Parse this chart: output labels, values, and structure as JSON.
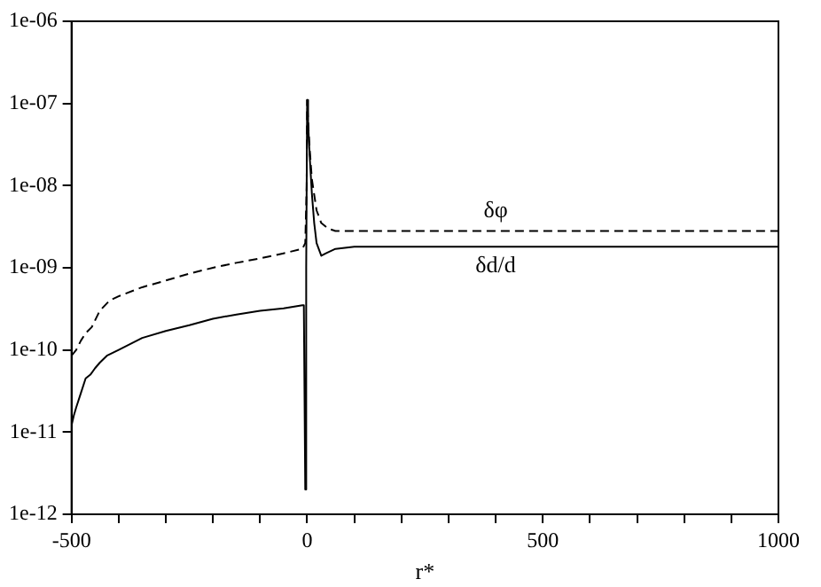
{
  "chart_data": {
    "type": "line",
    "xlabel": "r*",
    "log": "y",
    "grid": false,
    "legend": false,
    "marker": "none",
    "xlim": [
      -500,
      1000
    ],
    "xticks": [
      -500,
      {
        "value": -400,
        "label": null
      },
      {
        "value": -300,
        "label": null
      },
      {
        "value": -200,
        "label": null
      },
      {
        "value": -100,
        "label": null
      },
      0,
      {
        "value": 100,
        "label": null
      },
      {
        "value": 200,
        "label": null
      },
      {
        "value": 300,
        "label": null
      },
      {
        "value": 400,
        "label": null
      },
      500,
      {
        "value": 600,
        "label": null
      },
      {
        "value": 700,
        "label": null
      },
      {
        "value": 800,
        "label": null
      },
      {
        "value": 900,
        "label": null
      },
      1000
    ],
    "ylim": [
      1e-12,
      1e-06
    ],
    "yticks": [
      {
        "value": 1e-12,
        "label": "1e-12"
      },
      {
        "value": 1e-11,
        "label": "1e-11"
      },
      {
        "value": 1e-10,
        "label": "1e-10"
      },
      {
        "value": 1e-09,
        "label": "1e-09"
      },
      {
        "value": 1e-08,
        "label": "1e-08"
      },
      {
        "value": 1e-07,
        "label": "1e-07"
      },
      {
        "value": 1e-06,
        "label": "1e-06"
      }
    ],
    "series": [
      {
        "name": "δφ",
        "color": "#000000",
        "line_style": "dashed",
        "x": [
          -500,
          -490,
          -480,
          -470,
          -457,
          -440,
          -419,
          -400,
          -350,
          -300,
          -250,
          -200,
          -150,
          -100,
          -50,
          -10,
          -4,
          -1,
          0,
          2,
          5,
          10,
          20,
          30,
          45,
          60,
          100,
          300,
          600,
          1000
        ],
        "values": [
          8.5e-11,
          1e-10,
          1.3e-10,
          1.6e-10,
          1.9e-10,
          3e-10,
          4e-10,
          4.5e-10,
          5.8e-10,
          7e-10,
          8.5e-10,
          1e-09,
          1.15e-09,
          1.3e-09,
          1.5e-09,
          1.7e-09,
          2e-09,
          1e-08,
          1.1e-07,
          6e-08,
          3e-08,
          1.2e-08,
          5e-09,
          3.5e-09,
          3e-09,
          2.8e-09,
          2.8e-09,
          2.8e-09,
          2.8e-09,
          2.8e-09
        ]
      },
      {
        "name": "δd/d",
        "color": "#000000",
        "line_style": "solid",
        "x": [
          -500,
          -495,
          -490,
          -480,
          -470,
          -460,
          -450,
          -440,
          -425,
          -400,
          -350,
          -300,
          -250,
          -200,
          -150,
          -100,
          -50,
          -10,
          -7,
          -4,
          -2,
          0,
          2,
          5,
          10,
          15,
          20,
          30,
          40,
          60,
          100,
          300,
          600,
          1000
        ],
        "values": [
          1.2e-11,
          1.6e-11,
          2e-11,
          3e-11,
          4.5e-11,
          5e-11,
          6e-11,
          7e-11,
          8.5e-11,
          1e-10,
          1.4e-10,
          1.7e-10,
          2e-10,
          2.4e-10,
          2.7e-10,
          3e-10,
          3.2e-10,
          3.5e-10,
          3.5e-10,
          2e-12,
          1e-09,
          1.1e-07,
          6e-08,
          2.5e-08,
          8e-09,
          3.5e-09,
          2e-09,
          1.4e-09,
          1.5e-09,
          1.7e-09,
          1.8e-09,
          1.8e-09,
          1.8e-09,
          1.8e-09
        ]
      }
    ]
  }
}
